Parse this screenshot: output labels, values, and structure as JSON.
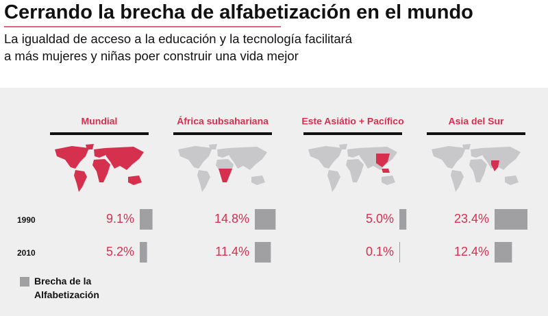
{
  "chart_data": {
    "type": "bar",
    "title": "Cerrando la brecha de alfabetización en el mundo",
    "subtitle": "La igualdad de acceso a la educación y la tecnología facilitará a más mujeres y niñas poer construir una vida mejor",
    "categories": [
      "Mundial",
      "África subsahariana",
      "Este Asiátio + Pacífico",
      "Asia del Sur"
    ],
    "series": [
      {
        "name": "1990",
        "color": "#a0a0a2",
        "values": [
          9.1,
          14.8,
          5.0,
          23.4
        ],
        "value_labels": [
          "9.1%",
          "14.8%",
          "5.0%",
          "23.4%"
        ]
      },
      {
        "name": "2010",
        "color": "#a0a0a2",
        "values": [
          5.2,
          11.4,
          0.1,
          12.4
        ],
        "value_labels": [
          "5.2%",
          "11.4%",
          "0.1%",
          "12.4%"
        ]
      }
    ],
    "legend": {
      "label": "Brecha de la Alfabetización",
      "color": "#a0a0a2"
    },
    "label_color": "#d6304f"
  }
}
